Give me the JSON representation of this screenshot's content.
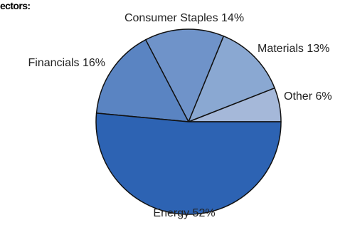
{
  "chart_data": {
    "type": "pie",
    "title": "ectors:",
    "slices": [
      {
        "label": "Other 6%",
        "name": "Other",
        "value": 6,
        "color": "#a5b8d9"
      },
      {
        "label": "Materials 13%",
        "name": "Materials",
        "value": 13,
        "color": "#8aa8d2"
      },
      {
        "label": "Consumer Staples 14%",
        "name": "Consumer Staples",
        "value": 14,
        "color": "#6f93c9"
      },
      {
        "label": "Financials 16%",
        "name": "Financials",
        "value": 16,
        "color": "#5a84c2"
      },
      {
        "label": "Energy 52%",
        "name": "Energy",
        "value": 52,
        "color": "#2d63b3"
      }
    ]
  }
}
